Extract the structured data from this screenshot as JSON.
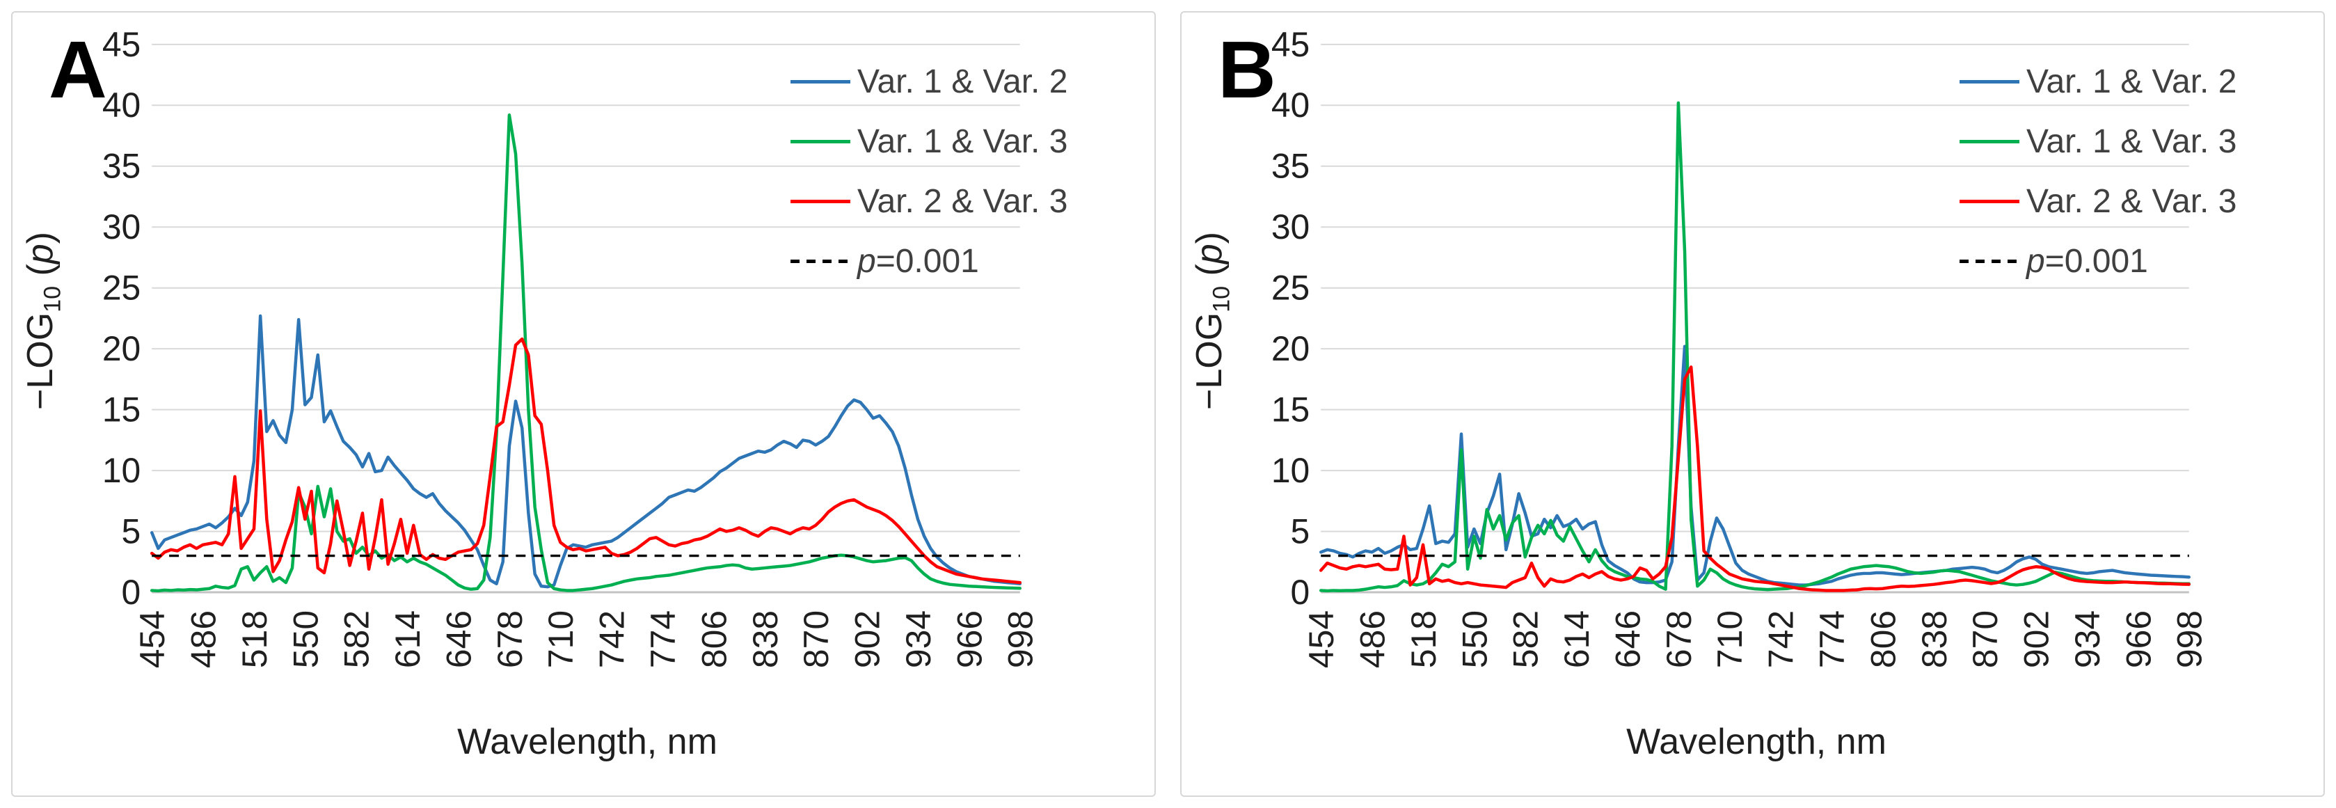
{
  "figure": {
    "background": "#ffffff",
    "grid_color": "#d9d9d9",
    "zero_line_color": "#c3c3c3",
    "text_color": "#1f1f1f",
    "legend_text_color": "#404040"
  },
  "chart_data": [
    {
      "type": "line",
      "panel_label": "A",
      "x_label": "Wavelength, nm",
      "y_label": "-LOG10 (p)",
      "y_label_parts": {
        "pre": "−LOG",
        "sub": "10",
        "mid": " (",
        "var": "p",
        "post": ")"
      },
      "xlim": [
        454,
        998
      ],
      "ylim": [
        0,
        45
      ],
      "x_ticks": [
        454,
        486,
        518,
        550,
        582,
        614,
        646,
        678,
        710,
        742,
        774,
        806,
        838,
        870,
        902,
        934,
        966,
        998
      ],
      "y_ticks": [
        0,
        5,
        10,
        15,
        20,
        25,
        30,
        35,
        40,
        45
      ],
      "grid": "horizontal",
      "legend_position": "top-right-inside",
      "threshold_line": {
        "label": "p=0.001",
        "y": 3,
        "style": "dashed",
        "color": "#000000"
      },
      "x_start": 454,
      "x_step": 4,
      "series": [
        {
          "name": "Var. 1 & Var. 2",
          "color": "#2E75B6",
          "values": [
            4.9,
            3.6,
            4.3,
            4.5,
            4.7,
            4.9,
            5.1,
            5.2,
            5.4,
            5.6,
            5.3,
            5.7,
            6.2,
            6.9,
            6.3,
            7.4,
            10.8,
            22.7,
            13.2,
            14.1,
            12.9,
            12.3,
            15,
            22.4,
            15.4,
            16,
            19.5,
            14,
            14.9,
            13.6,
            12.4,
            11.9,
            11.3,
            10.3,
            11.4,
            9.9,
            10,
            11.1,
            10.4,
            9.8,
            9.2,
            8.5,
            8.1,
            7.8,
            8.1,
            7.3,
            6.7,
            6.2,
            5.7,
            5.1,
            4.3,
            3.5,
            2.2,
            1,
            0.7,
            2.5,
            12,
            15.7,
            13.5,
            6.5,
            1.5,
            0.5,
            0.45,
            0.6,
            2.2,
            3.6,
            3.9,
            3.8,
            3.7,
            3.9,
            4,
            4.1,
            4.2,
            4.5,
            4.9,
            5.3,
            5.7,
            6.1,
            6.5,
            6.9,
            7.3,
            7.8,
            8,
            8.2,
            8.4,
            8.3,
            8.6,
            9,
            9.4,
            9.9,
            10.2,
            10.6,
            11,
            11.2,
            11.4,
            11.6,
            11.5,
            11.7,
            12.1,
            12.4,
            12.2,
            11.9,
            12.5,
            12.4,
            12.1,
            12.4,
            12.8,
            13.6,
            14.5,
            15.3,
            15.8,
            15.6,
            15,
            14.3,
            14.5,
            13.9,
            13.2,
            12,
            10.2,
            8,
            6,
            4.6,
            3.6,
            2.9,
            2.4,
            2,
            1.7,
            1.5,
            1.3,
            1.2,
            1.1,
            1,
            0.9,
            0.85,
            0.8,
            0.75,
            0.7
          ]
        },
        {
          "name": "Var. 1 & Var. 3",
          "color": "#00B050",
          "values": [
            0.15,
            0.12,
            0.18,
            0.15,
            0.2,
            0.18,
            0.22,
            0.2,
            0.25,
            0.3,
            0.5,
            0.4,
            0.35,
            0.55,
            1.9,
            2.1,
            1,
            1.6,
            2.1,
            0.9,
            1.2,
            0.8,
            2,
            8.2,
            7,
            4.8,
            8.7,
            6.2,
            8.5,
            5,
            4.2,
            4.4,
            3.2,
            3.7,
            3,
            3.4,
            2.8,
            3.1,
            2.6,
            2.9,
            2.5,
            2.8,
            2.5,
            2.3,
            2,
            1.7,
            1.4,
            1,
            0.6,
            0.35,
            0.25,
            0.3,
            1,
            4.5,
            13,
            26,
            39.2,
            36,
            27,
            15,
            7,
            3.5,
            0.8,
            0.3,
            0.2,
            0.15,
            0.15,
            0.2,
            0.25,
            0.3,
            0.4,
            0.5,
            0.6,
            0.75,
            0.9,
            1,
            1.1,
            1.15,
            1.2,
            1.3,
            1.35,
            1.4,
            1.5,
            1.6,
            1.7,
            1.8,
            1.9,
            2,
            2.05,
            2.1,
            2.2,
            2.25,
            2.2,
            2,
            1.9,
            1.95,
            2,
            2.05,
            2.1,
            2.15,
            2.2,
            2.3,
            2.4,
            2.5,
            2.65,
            2.8,
            2.9,
            3,
            3.05,
            3,
            2.9,
            2.75,
            2.6,
            2.5,
            2.55,
            2.6,
            2.7,
            2.8,
            2.85,
            2.6,
            2,
            1.5,
            1.1,
            0.9,
            0.75,
            0.65,
            0.6,
            0.55,
            0.5,
            0.48,
            0.45,
            0.42,
            0.4,
            0.38,
            0.36,
            0.35,
            0.33
          ]
        },
        {
          "name": "Var. 2 & Var. 3",
          "color": "#FF0000",
          "values": [
            3.2,
            2.8,
            3.3,
            3.5,
            3.4,
            3.7,
            3.9,
            3.6,
            3.9,
            4,
            4.1,
            3.9,
            4.8,
            9.5,
            3.6,
            4.4,
            5.2,
            14.9,
            6,
            1.7,
            2.6,
            4.3,
            5.8,
            8.6,
            6,
            8.3,
            2,
            1.6,
            4,
            7.5,
            5,
            2.2,
            4.2,
            6.5,
            1.9,
            4.5,
            7.6,
            2.3,
            4,
            6,
            3.2,
            5.5,
            3.1,
            2.7,
            3.1,
            2.8,
            2.7,
            3,
            3.3,
            3.4,
            3.5,
            4,
            5.5,
            9.5,
            13.6,
            14,
            17,
            20.3,
            20.8,
            19.5,
            14.5,
            13.8,
            10,
            5.5,
            4.1,
            3.7,
            3.5,
            3.6,
            3.4,
            3.5,
            3.6,
            3.7,
            3.2,
            3,
            3.1,
            3.3,
            3.6,
            4,
            4.4,
            4.5,
            4.2,
            3.9,
            3.8,
            4,
            4.1,
            4.3,
            4.4,
            4.6,
            4.9,
            5.2,
            5,
            5.1,
            5.3,
            5.1,
            4.8,
            4.6,
            5,
            5.3,
            5.2,
            5,
            4.8,
            5.1,
            5.3,
            5.2,
            5.5,
            6,
            6.6,
            7,
            7.3,
            7.5,
            7.6,
            7.3,
            7,
            6.8,
            6.6,
            6.3,
            5.9,
            5.4,
            4.8,
            4.2,
            3.6,
            3,
            2.5,
            2.1,
            1.9,
            1.7,
            1.5,
            1.4,
            1.3,
            1.2,
            1.1,
            1.05,
            1,
            0.95,
            0.9,
            0.85,
            0.8
          ]
        }
      ]
    },
    {
      "type": "line",
      "panel_label": "B",
      "x_label": "Wavelength, nm",
      "y_label": "-LOG10 (p)",
      "y_label_parts": {
        "pre": "−LOG",
        "sub": "10",
        "mid": " (",
        "var": "p",
        "post": ")"
      },
      "xlim": [
        454,
        998
      ],
      "ylim": [
        0,
        45
      ],
      "x_ticks": [
        454,
        486,
        518,
        550,
        582,
        614,
        646,
        678,
        710,
        742,
        774,
        806,
        838,
        870,
        902,
        934,
        966,
        998
      ],
      "y_ticks": [
        0,
        5,
        10,
        15,
        20,
        25,
        30,
        35,
        40,
        45
      ],
      "grid": "horizontal",
      "legend_position": "top-right-inside",
      "threshold_line": {
        "label": "p=0.001",
        "y": 3,
        "style": "dashed",
        "color": "#000000"
      },
      "x_start": 454,
      "x_step": 4,
      "series": [
        {
          "name": "Var. 1 & Var. 2",
          "color": "#2E75B6",
          "values": [
            3.3,
            3.5,
            3.4,
            3.2,
            3.1,
            2.9,
            3.2,
            3.4,
            3.3,
            3.6,
            3.2,
            3.4,
            3.7,
            3.9,
            3.5,
            3.6,
            5.2,
            7.1,
            4,
            4.2,
            4.1,
            4.8,
            13,
            3.7,
            5.2,
            4,
            6.5,
            7.9,
            9.7,
            3.5,
            5.6,
            8.1,
            6.5,
            4.6,
            4.8,
            6,
            5.3,
            6.3,
            5.4,
            5.6,
            6,
            5.2,
            5.6,
            5.8,
            3.9,
            2.6,
            2.2,
            1.9,
            1.6,
            1.1,
            0.85,
            0.8,
            0.8,
            0.85,
            1,
            2.5,
            12,
            20.2,
            7,
            1,
            1.6,
            4.2,
            6.1,
            5.2,
            3.8,
            2.4,
            1.8,
            1.5,
            1.3,
            1.1,
            0.9,
            0.8,
            0.75,
            0.7,
            0.65,
            0.6,
            0.6,
            0.65,
            0.7,
            0.8,
            0.9,
            1.1,
            1.25,
            1.4,
            1.5,
            1.55,
            1.55,
            1.6,
            1.6,
            1.55,
            1.5,
            1.45,
            1.5,
            1.55,
            1.6,
            1.65,
            1.7,
            1.75,
            1.8,
            1.9,
            1.95,
            2,
            2.05,
            2,
            1.9,
            1.7,
            1.6,
            1.8,
            2.1,
            2.5,
            2.75,
            2.9,
            2.7,
            2.3,
            2.1,
            2,
            1.9,
            1.8,
            1.7,
            1.6,
            1.55,
            1.6,
            1.7,
            1.75,
            1.8,
            1.7,
            1.6,
            1.55,
            1.5,
            1.45,
            1.4,
            1.38,
            1.35,
            1.32,
            1.3,
            1.28,
            1.25
          ]
        },
        {
          "name": "Var. 1 & Var. 3",
          "color": "#00B050",
          "values": [
            0.15,
            0.12,
            0.15,
            0.13,
            0.15,
            0.14,
            0.18,
            0.25,
            0.35,
            0.45,
            0.4,
            0.45,
            0.55,
            0.95,
            0.7,
            0.6,
            0.7,
            1,
            1.6,
            2.3,
            2.1,
            2.5,
            11.7,
            1.9,
            4.6,
            2.8,
            6.8,
            5.2,
            6.3,
            4.3,
            5.7,
            6.3,
            2.9,
            4.5,
            5.5,
            4.8,
            5.9,
            4.7,
            4.2,
            5.4,
            4.4,
            3.4,
            2.5,
            3.5,
            2.6,
            2,
            1.7,
            1.5,
            1.3,
            1.2,
            1.1,
            1.05,
            0.9,
            0.5,
            0.25,
            12,
            40.2,
            28,
            6,
            0.5,
            1,
            1.9,
            1.6,
            1.1,
            0.8,
            0.6,
            0.45,
            0.35,
            0.28,
            0.25,
            0.22,
            0.25,
            0.28,
            0.3,
            0.38,
            0.45,
            0.55,
            0.7,
            0.85,
            1.05,
            1.25,
            1.5,
            1.7,
            1.9,
            2,
            2.1,
            2.15,
            2.2,
            2.15,
            2.1,
            2,
            1.85,
            1.7,
            1.6,
            1.55,
            1.6,
            1.65,
            1.75,
            1.8,
            1.75,
            1.7,
            1.55,
            1.4,
            1.25,
            1.1,
            0.95,
            0.85,
            0.75,
            0.65,
            0.6,
            0.65,
            0.75,
            0.9,
            1.15,
            1.4,
            1.65,
            1.55,
            1.4,
            1.25,
            1.1,
            1,
            0.95,
            0.92,
            0.9,
            0.9,
            0.88,
            0.85,
            0.82,
            0.8,
            0.8,
            0.78,
            0.76,
            0.75,
            0.73,
            0.72,
            0.7,
            0.7
          ]
        },
        {
          "name": "Var. 2 & Var. 3",
          "color": "#FF0000",
          "values": [
            1.8,
            2.4,
            2.2,
            2,
            1.9,
            2.1,
            2.2,
            2.1,
            2.2,
            2.3,
            1.9,
            1.85,
            1.9,
            4.6,
            0.6,
            1.2,
            3.9,
            0.7,
            1.1,
            0.9,
            1,
            0.8,
            0.7,
            0.8,
            0.7,
            0.6,
            0.55,
            0.5,
            0.45,
            0.4,
            0.8,
            1,
            1.2,
            2.4,
            1.2,
            0.5,
            1.1,
            0.9,
            0.85,
            1,
            1.3,
            1.5,
            1.2,
            1.5,
            1.7,
            1.3,
            1.1,
            1,
            1.1,
            1.3,
            2,
            1.8,
            1.1,
            1.5,
            2.1,
            4.5,
            11,
            17.5,
            18.5,
            12,
            3.4,
            2.8,
            2.3,
            1.9,
            1.5,
            1.3,
            1.1,
            1,
            0.9,
            0.85,
            0.8,
            0.7,
            0.6,
            0.5,
            0.4,
            0.3,
            0.25,
            0.2,
            0.18,
            0.15,
            0.15,
            0.15,
            0.15,
            0.18,
            0.2,
            0.28,
            0.3,
            0.28,
            0.3,
            0.38,
            0.45,
            0.5,
            0.48,
            0.5,
            0.55,
            0.6,
            0.65,
            0.72,
            0.8,
            0.85,
            0.95,
            1,
            0.95,
            0.88,
            0.8,
            0.72,
            0.8,
            1,
            1.3,
            1.6,
            1.85,
            2,
            2.1,
            2.05,
            1.9,
            1.6,
            1.35,
            1.15,
            1,
            0.92,
            0.88,
            0.85,
            0.82,
            0.8,
            0.8,
            0.82,
            0.85,
            0.82,
            0.8,
            0.78,
            0.75,
            0.72,
            0.7,
            0.7,
            0.68,
            0.66,
            0.65
          ]
        }
      ]
    }
  ]
}
